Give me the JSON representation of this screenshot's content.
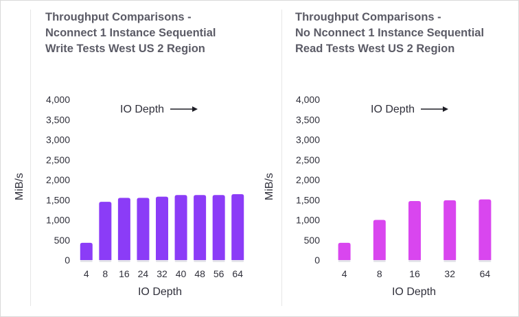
{
  "chart_data": [
    {
      "type": "bar",
      "title_lines": [
        "Throughput Comparisons -",
        "Nconnect 1 Instance Sequential",
        "Write Tests West US 2 Region"
      ],
      "xlabel": "IO Depth",
      "ylabel": "MiB/s",
      "annotation": "IO Depth",
      "annotation_arrow": true,
      "categories": [
        "4",
        "8",
        "16",
        "24",
        "32",
        "40",
        "48",
        "56",
        "64"
      ],
      "values": [
        430,
        1450,
        1550,
        1550,
        1580,
        1620,
        1620,
        1620,
        1640
      ],
      "ylim": [
        0,
        4000
      ],
      "yticks": [
        0,
        500,
        1000,
        1500,
        2000,
        2500,
        3000,
        3500,
        4000
      ],
      "ytick_labels": [
        "0",
        "500",
        "1,000",
        "1,500",
        "2,000",
        "2,500",
        "3,000",
        "3,500",
        "4,000"
      ],
      "grid": false,
      "legend": "none",
      "bar_color": "#8b3cf7"
    },
    {
      "type": "bar",
      "title_lines": [
        "Throughput Comparisons -",
        "No Nconnect 1 Instance Sequential",
        "Read Tests West US 2 Region"
      ],
      "xlabel": "IO Depth",
      "ylabel": "MiB/s",
      "annotation": "IO Depth",
      "annotation_arrow": true,
      "categories": [
        "4",
        "8",
        "16",
        "32",
        "64"
      ],
      "values": [
        430,
        1000,
        1470,
        1490,
        1510
      ],
      "ylim": [
        0,
        4000
      ],
      "yticks": [
        0,
        500,
        1000,
        1500,
        2000,
        2500,
        3000,
        3500,
        4000
      ],
      "ytick_labels": [
        "0",
        "500",
        "1,000",
        "1,500",
        "2,000",
        "2,500",
        "3,000",
        "3,500",
        "4,000"
      ],
      "grid": false,
      "legend": "none",
      "bar_color": "#d946ef"
    }
  ]
}
